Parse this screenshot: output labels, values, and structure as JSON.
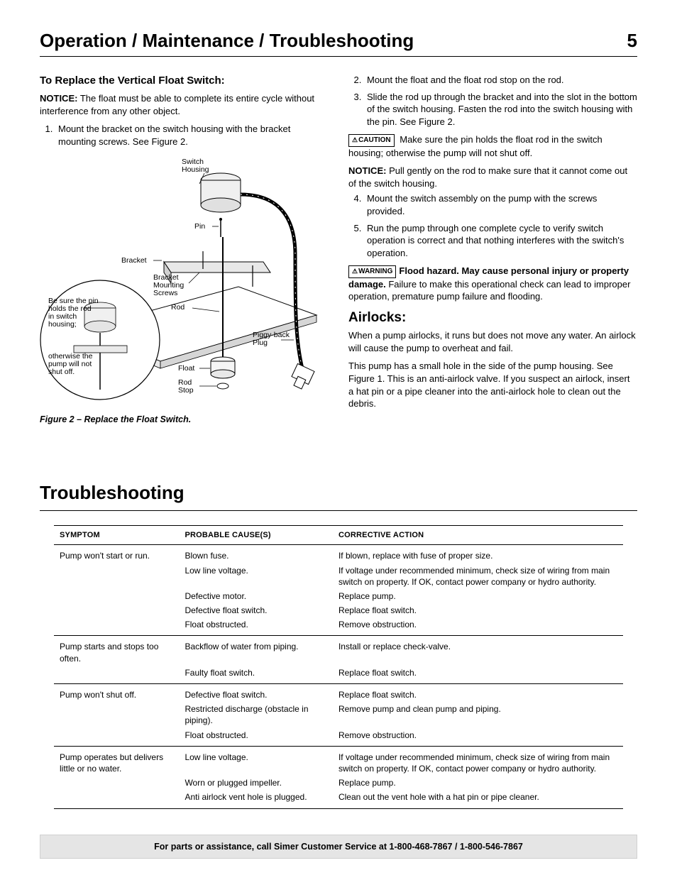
{
  "header": {
    "title": "Operation / Maintenance / Troubleshooting",
    "page_number": "5"
  },
  "left": {
    "h3": "To Replace the Vertical Float Switch:",
    "notice_label": "NOTICE:",
    "notice_text": " The float must be able to complete its entire cycle without interference from any other object.",
    "step1": "Mount the bracket on the switch housing with the bracket mounting screws. See Figure 2.",
    "fig_caption": "Figure 2 – Replace the Float Switch.",
    "diagram": {
      "switch_housing": "Switch\nHousing",
      "pin": "Pin",
      "bracket": "Bracket",
      "bracket_mounting_screws": "Bracket\nMounting\nScrews",
      "rod": "Rod",
      "piggy_back_plug": "Piggy-back\nPlug",
      "float": "Float",
      "rod_stop": "Rod\nStop",
      "annot1": "Be sure the pin\nholds the rod\nin switch\nhousing;",
      "annot2": "otherwise the\npump will not\nshut off."
    }
  },
  "right": {
    "step2": "Mount the float and the float rod stop on the rod.",
    "step3": "Slide the rod up through the bracket and into the slot in the bottom of the switch housing. Fasten the rod into the switch housing with the pin. See Figure 2.",
    "caution_label": "CAUTION",
    "caution_text": " Make sure the pin holds the float rod in the switch housing; otherwise the pump will not shut off.",
    "notice2_label": "NOTICE:",
    "notice2_text": " Pull gently on the rod to make sure that it cannot come out of the switch housing.",
    "step4": "Mount the switch assembly on the pump with the screws provided.",
    "step5": "Run the pump through one complete cycle to verify switch operation is correct and that nothing interferes with the switch's operation.",
    "warning_label": "WARNING",
    "warning_bold": "Flood hazard. May cause personal injury or prop­erty damage.",
    "warning_text": " Failure to make this operational check can lead to improper operation, premature pump failure and flooding.",
    "airlocks_h2": "Airlocks:",
    "airlocks_p1": "When a pump airlocks, it runs but does not move any water. An airlock will cause the pump to overheat and fail.",
    "airlocks_p2": "This pump has a small hole in the side of the pump housing. See Figure 1. This is an anti-airlock valve. If you suspect an air­lock, insert a hat pin or a pipe cleaner into the anti-airlock hole to clean out the debris."
  },
  "troubleshooting": {
    "heading": "Troubleshooting",
    "columns": [
      "SYMPTOM",
      "PROBABLE CAUSE(S)",
      "CORRECTIVE ACTION"
    ],
    "groups": [
      {
        "symptom": "Pump won't start or run.",
        "rows": [
          [
            "Blown fuse.",
            "If blown, replace with fuse of proper size."
          ],
          [
            "Low line voltage.",
            "If voltage under recommended minimum, check size of wiring from main switch on property. If OK, contact power company or hydro authority."
          ],
          [
            "Defective motor.",
            "Replace pump."
          ],
          [
            "Defective float switch.",
            "Replace float switch."
          ],
          [
            "Float obstructed.",
            "Remove obstruction."
          ]
        ]
      },
      {
        "symptom": "Pump starts and stops too often.",
        "rows": [
          [
            "Backflow of water from piping.",
            "Install or replace check-valve."
          ],
          [
            "Faulty float switch.",
            "Replace float switch."
          ]
        ]
      },
      {
        "symptom": "Pump won't shut off.",
        "rows": [
          [
            "Defective float switch.",
            "Replace float switch."
          ],
          [
            "Restricted discharge (obstacle in piping).",
            "Remove pump and clean pump and piping."
          ],
          [
            "Float obstructed.",
            "Remove obstruction."
          ]
        ]
      },
      {
        "symptom": "Pump operates but delivers little or no water.",
        "rows": [
          [
            "Low line voltage.",
            "If voltage under recommended minimum, check size of wiring from main switch on property. If OK, contact power company or hydro authority."
          ],
          [
            "Worn or plugged impeller.",
            "Replace pump."
          ],
          [
            "Anti airlock vent hole is plugged.",
            "Clean out the vent hole with a hat pin or pipe cleaner."
          ]
        ]
      }
    ]
  },
  "footer": {
    "prefix": "For parts or assistance, call Simer Customer Service at ",
    "phones": "1-800-468-7867 / 1-800-546-7867"
  }
}
